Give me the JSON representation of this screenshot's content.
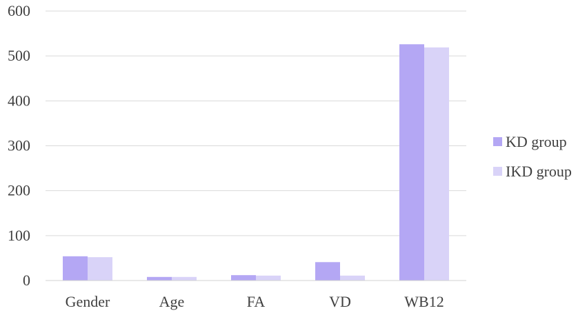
{
  "chart_data": {
    "type": "bar",
    "categories": [
      "Gender",
      "Age",
      "FA",
      "VD",
      "WB12"
    ],
    "series": [
      {
        "name": "KD group",
        "color": "#b4a7f4",
        "values": [
          54,
          8,
          12,
          41,
          526
        ]
      },
      {
        "name": "IKD group",
        "color": "#d9d3f8",
        "values": [
          52,
          8,
          11,
          11,
          519
        ]
      }
    ],
    "ylim": [
      0,
      600
    ],
    "yticks": [
      "0",
      "100",
      "200",
      "300",
      "400",
      "500",
      "600"
    ],
    "grid": true,
    "legend_position": "right",
    "title": "",
    "xlabel": "",
    "ylabel": ""
  }
}
